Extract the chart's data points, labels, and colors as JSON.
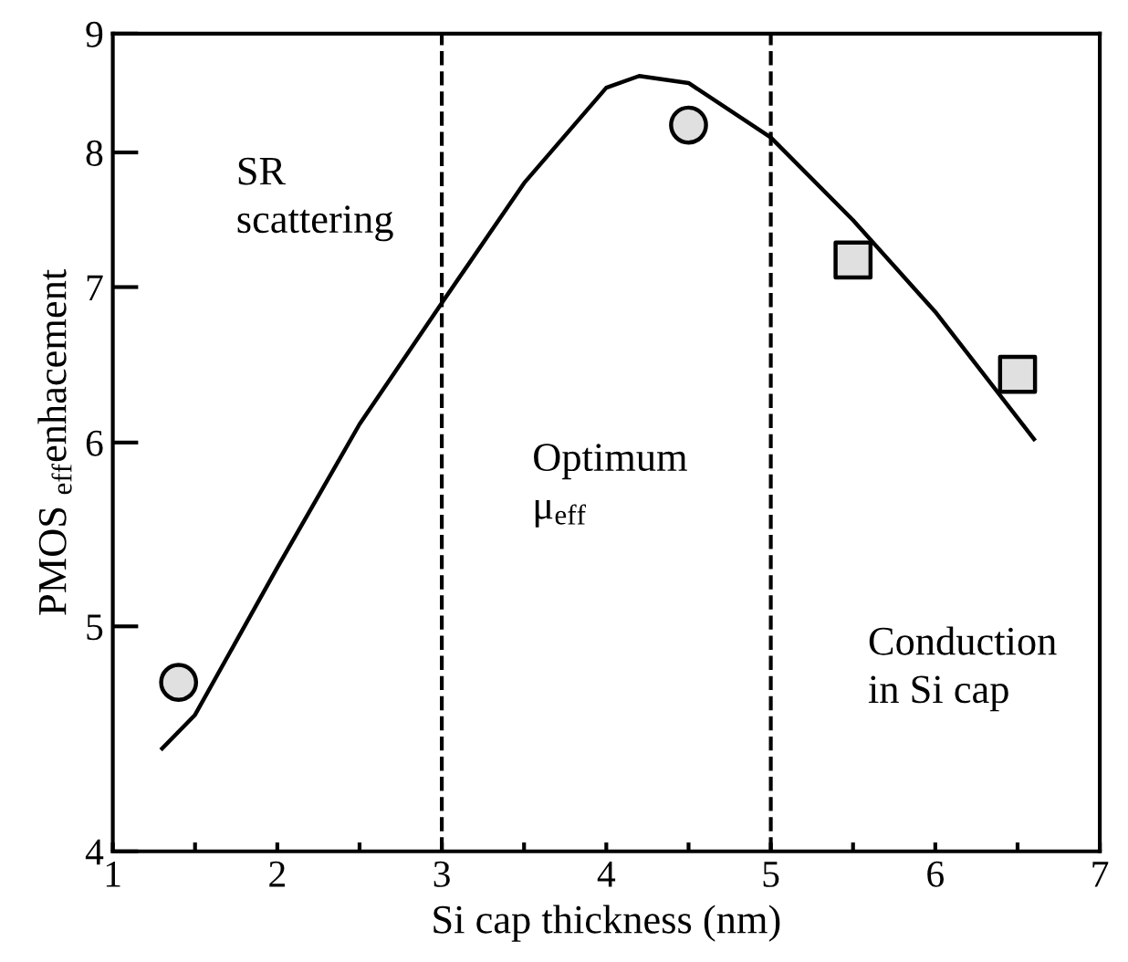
{
  "chart_data": {
    "type": "line",
    "xlabel": "Si cap thickness (nm)",
    "ylabel": "PMOS $_{eff}$enhacement",
    "log": "y",
    "xlim": [
      1,
      7
    ],
    "ylim": [
      4,
      9
    ],
    "xticks": [
      1,
      {
        "value": 1.5,
        "label": null
      },
      2,
      {
        "value": 2.5,
        "label": null
      },
      3,
      {
        "value": 3.5,
        "label": null
      },
      4,
      {
        "value": 4.5,
        "label": null
      },
      5,
      {
        "value": 5.5,
        "label": null
      },
      6,
      {
        "value": 6.5,
        "label": null
      },
      7
    ],
    "yticks": [
      4,
      5,
      6,
      7,
      8,
      9
    ],
    "grid": false,
    "legend": false,
    "series": [
      {
        "color": "#000000",
        "marker": "none",
        "line_style": "solid",
        "x": [
          1.3,
          1.5,
          2.0,
          2.5,
          3.0,
          3.5,
          4.0,
          4.2,
          4.5,
          5.0,
          5.5,
          6.0,
          6.6
        ],
        "values": [
          4.43,
          4.58,
          5.3,
          6.11,
          6.89,
          7.76,
          8.53,
          8.63,
          8.57,
          8.12,
          7.48,
          6.83,
          6.02
        ]
      },
      {
        "type": "scatter",
        "color": "#e0e0e0",
        "marker": "circle",
        "x": [
          1.4,
          4.5
        ],
        "values": [
          4.73,
          8.22
        ]
      },
      {
        "type": "scatter",
        "color": "#e0e0e0",
        "marker": "square",
        "x": [
          5.5,
          6.5
        ],
        "values": [
          7.19,
          6.42
        ]
      }
    ],
    "ref_lines": [
      {
        "axis": "x",
        "value": 3,
        "line_style": "dashed",
        "color": "#000000"
      },
      {
        "axis": "x",
        "value": 5,
        "line_style": "dashed",
        "color": "#000000"
      }
    ],
    "annotations": [
      "SR\nscattering",
      "Optimum\nμ$_{eff}$",
      "Conduction\nin Si cap"
    ]
  }
}
